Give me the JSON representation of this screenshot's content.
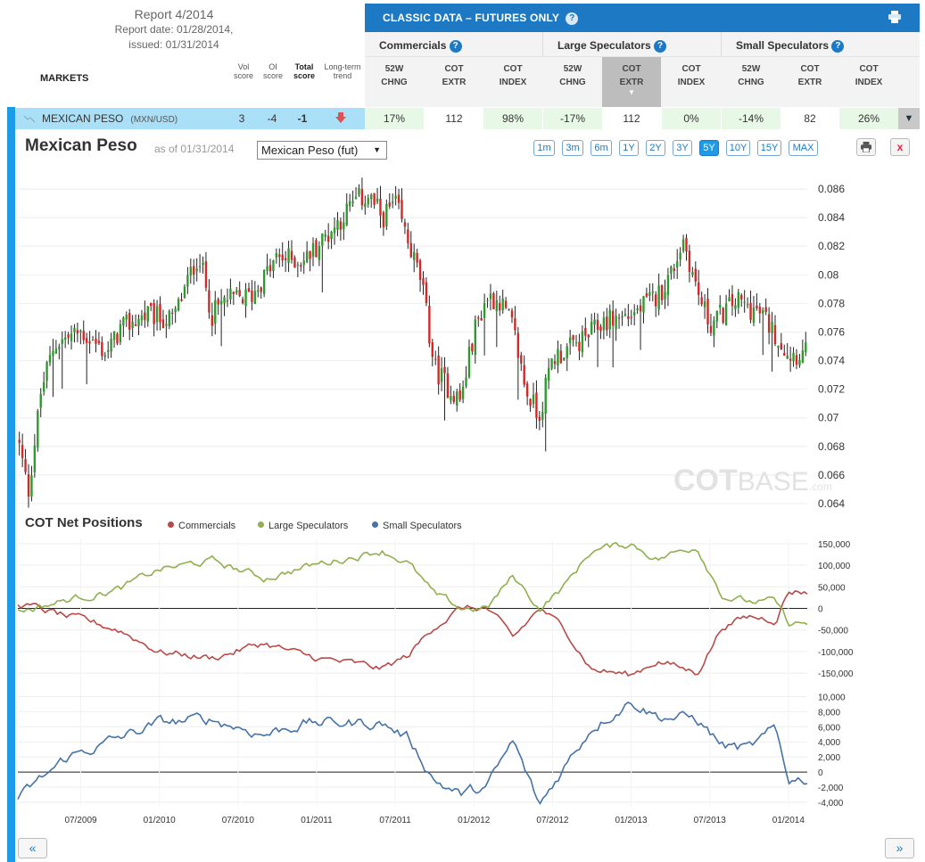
{
  "report": {
    "title": "Report 4/2014",
    "report_date": "Report date: 01/28/2014,",
    "issued": "issued: 01/31/2014"
  },
  "markets_header": {
    "label": "MARKETS",
    "vol": "Vol score",
    "oi": "OI score",
    "total": "Total score",
    "trend": "Long-term trend"
  },
  "classic": {
    "title": "CLASSIC DATA – FUTURES ONLY",
    "groups": [
      "Commercials",
      "Large Speculators",
      "Small Speculators"
    ],
    "columns": [
      {
        "l1": "52W",
        "l2": "CHNG"
      },
      {
        "l1": "COT",
        "l2": "EXTR"
      },
      {
        "l1": "COT",
        "l2": "INDEX"
      },
      {
        "l1": "52W",
        "l2": "CHNG"
      },
      {
        "l1": "COT",
        "l2": "EXTR"
      },
      {
        "l1": "COT",
        "l2": "INDEX"
      },
      {
        "l1": "52W",
        "l2": "CHNG"
      },
      {
        "l1": "COT",
        "l2": "EXTR"
      },
      {
        "l1": "COT",
        "l2": "INDEX"
      }
    ]
  },
  "market_row": {
    "name": "MEXICAN PESO",
    "symbol": "(MXN/USD)",
    "vol": "3",
    "oi": "-4",
    "total": "-1",
    "cells": [
      "17%",
      "112",
      "98%",
      "-17%",
      "112",
      "0%",
      "-14%",
      "82",
      "26%"
    ]
  },
  "toolbar": {
    "title": "Mexican Peso",
    "as_of": "as of 01/31/2014",
    "contract": "Mexican Peso (fut)",
    "ranges": [
      "1m",
      "3m",
      "6m",
      "1Y",
      "2Y",
      "3Y",
      "5Y",
      "10Y",
      "15Y",
      "MAX"
    ],
    "active_range": "5Y",
    "close": "x"
  },
  "watermark": {
    "cot": "COT",
    "base": "BASE",
    "dotcom": ".com"
  },
  "cot": {
    "title": "COT Net Positions",
    "legend": [
      "Commercials",
      "Large Speculators",
      "Small Speculators"
    ],
    "colors": {
      "commercials": "#b94a48",
      "large": "#8fb04d",
      "small": "#4572a7"
    }
  },
  "nav": {
    "prev": "«",
    "next": "»"
  },
  "chart_data": [
    {
      "type": "candlestick",
      "title": "Mexican Peso",
      "ylim": [
        0.0635,
        0.0875
      ],
      "y_ticks": [
        "0.086",
        "0.084",
        "0.082",
        "0.08",
        "0.078",
        "0.076",
        "0.074",
        "0.072",
        "0.07",
        "0.068",
        "0.066",
        "0.064"
      ],
      "x_ticks": [
        "07/2009",
        "01/2010",
        "07/2010",
        "01/2011",
        "07/2011",
        "01/2012",
        "07/2012",
        "01/2013",
        "07/2013",
        "01/2014"
      ],
      "x": [
        "2009-02",
        "2009-03",
        "2009-04",
        "2009-05",
        "2009-07",
        "2009-09",
        "2009-10",
        "2009-12",
        "2010-02",
        "2010-04",
        "2010-05",
        "2010-06",
        "2010-08",
        "2010-10",
        "2010-12",
        "2011-02",
        "2011-04",
        "2011-05",
        "2011-06",
        "2011-07",
        "2011-09",
        "2011-10",
        "2011-11",
        "2011-12",
        "2012-01",
        "2012-02",
        "2012-03",
        "2012-04",
        "2012-05",
        "2012-06",
        "2012-07",
        "2012-09",
        "2012-11",
        "2013-01",
        "2013-03",
        "2013-04",
        "2013-05",
        "2013-06",
        "2013-07",
        "2013-09",
        "2013-11",
        "2014-01"
      ],
      "close": [
        0.0695,
        0.0648,
        0.072,
        0.0752,
        0.076,
        0.0745,
        0.0762,
        0.0772,
        0.0768,
        0.0815,
        0.0772,
        0.0782,
        0.0785,
        0.0812,
        0.081,
        0.083,
        0.0852,
        0.0855,
        0.084,
        0.085,
        0.0795,
        0.0735,
        0.0722,
        0.0712,
        0.076,
        0.0785,
        0.0782,
        0.0762,
        0.0718,
        0.0702,
        0.0742,
        0.0752,
        0.0768,
        0.0772,
        0.0785,
        0.08,
        0.0825,
        0.079,
        0.0765,
        0.0782,
        0.0772,
        0.0745
      ]
    },
    {
      "type": "line",
      "title": "COT Net Positions",
      "ylim": [
        -160000,
        160000
      ],
      "y_ticks": [
        "150,000",
        "100,000",
        "50,000",
        "0",
        "-50,000",
        "-100,000",
        "-150,000"
      ],
      "x": [
        "2009-02",
        "2009-06",
        "2009-10",
        "2010-01",
        "2010-05",
        "2010-09",
        "2010-12",
        "2011-03",
        "2011-06",
        "2011-08",
        "2011-10",
        "2011-12",
        "2012-02",
        "2012-04",
        "2012-06",
        "2012-08",
        "2012-10",
        "2013-01",
        "2013-03",
        "2013-06",
        "2013-08",
        "2013-10",
        "2013-12",
        "2014-01"
      ],
      "series": [
        {
          "name": "Commercials",
          "values": [
            15000,
            -20000,
            -50000,
            -100000,
            -115000,
            -80000,
            -110000,
            -125000,
            -140000,
            -110000,
            -40000,
            0,
            0,
            -70000,
            0,
            -50000,
            -140000,
            -155000,
            -120000,
            -150000,
            -40000,
            -20000,
            -25000,
            40000
          ]
        },
        {
          "name": "Large Speculators",
          "values": [
            -10000,
            20000,
            45000,
            90000,
            110000,
            70000,
            95000,
            115000,
            135000,
            105000,
            30000,
            0,
            0,
            75000,
            0,
            55000,
            135000,
            150000,
            115000,
            145000,
            30000,
            15000,
            15000,
            -35000
          ]
        }
      ]
    },
    {
      "type": "line",
      "ylim": [
        -4600,
        11000
      ],
      "y_ticks": [
        "10,000",
        "8,000",
        "6,000",
        "4,000",
        "2,000",
        "0",
        "-2,000",
        "-4,000"
      ],
      "series": [
        {
          "name": "Small Speculators",
          "values": [
            -4000,
            2000,
            4500,
            6500,
            7000,
            5000,
            6500,
            6500,
            6500,
            4500,
            -1000,
            -3000,
            -2000,
            4000,
            -4500,
            1000,
            6000,
            9500,
            7500,
            7000,
            3500,
            3000,
            5500,
            -900
          ]
        }
      ]
    }
  ]
}
